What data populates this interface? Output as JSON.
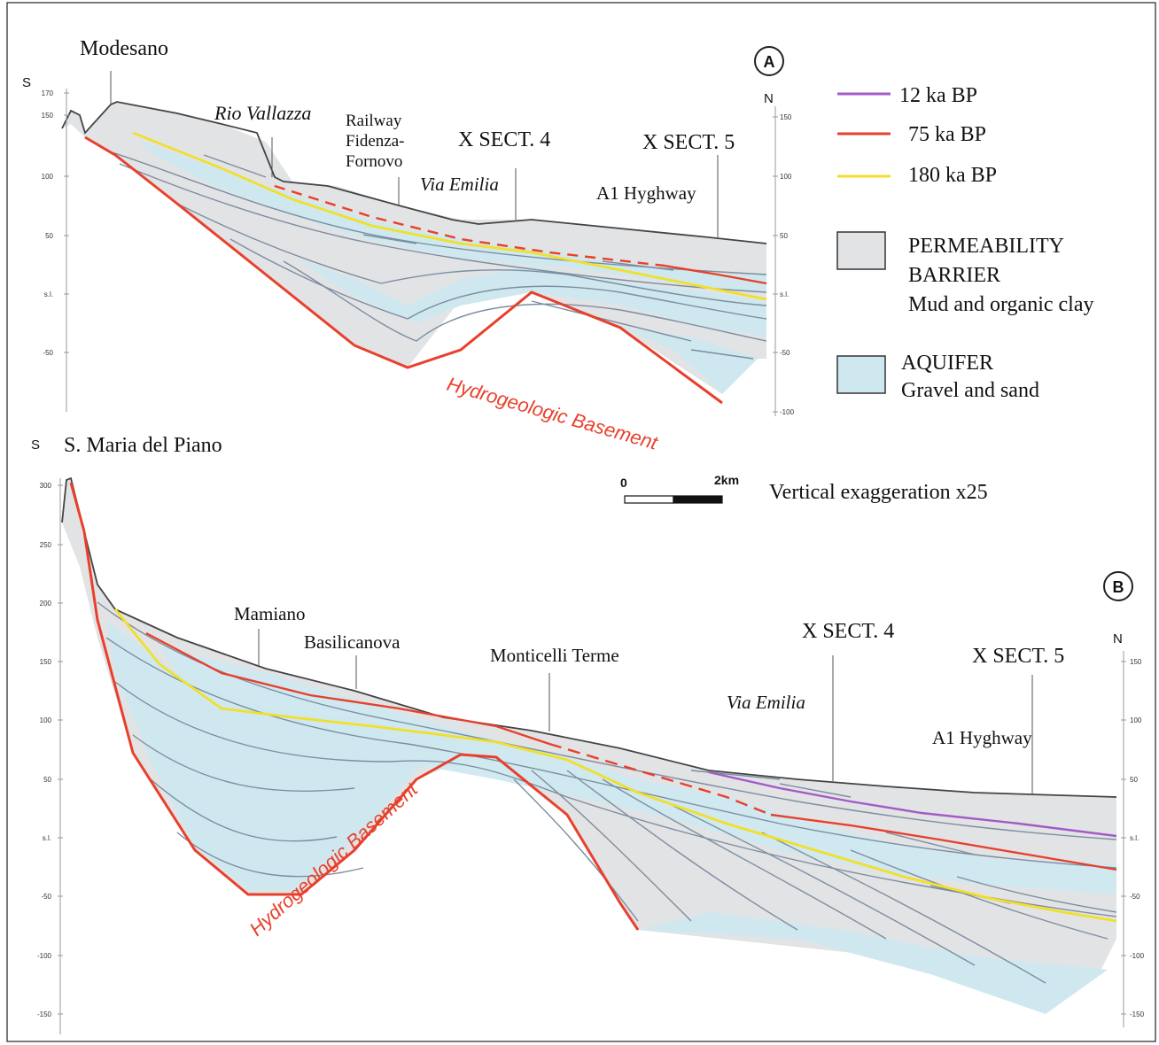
{
  "colors": {
    "barrier": "#e2e3e5",
    "aquifer": "#cfe8ef",
    "basement": "#e8402c",
    "line_12ka": "#a35bc7",
    "line_75ka": "#e8402c",
    "line_180ka": "#f2df2a",
    "bed_lines": "#7c8ea0",
    "profile": "#444444"
  },
  "section_a": {
    "id": "A",
    "south_label": "S",
    "north_label": "N",
    "left_ticks": [
      "170",
      "150",
      "100",
      "50",
      "s.l.",
      "-50"
    ],
    "right_ticks": [
      "150",
      "100",
      "50",
      "s.l.",
      "-50",
      "-100"
    ],
    "places": {
      "modesano": "Modesano",
      "rio_vallazza": "Rio Vallazza",
      "railway_1": "Railway",
      "railway_2": "Fidenza-",
      "railway_3": "Fornovo",
      "xsect4": "X SECT. 4",
      "via_emilia": "Via Emilia",
      "xsect5": "X SECT. 5",
      "a1": "A1 Hyghway"
    },
    "basement_label": "Hydrogeologic Basement"
  },
  "section_b": {
    "id": "B",
    "south_label": "S",
    "north_label": "N",
    "left_ticks": [
      "300",
      "250",
      "200",
      "150",
      "100",
      "50",
      "s.l.",
      "-50",
      "-100",
      "-150"
    ],
    "right_ticks": [
      "150",
      "100",
      "50",
      "s.l.",
      "-50",
      "-100",
      "-150"
    ],
    "places": {
      "santa_maria": "S. Maria del Piano",
      "mamiano": "Mamiano",
      "basilicanova": "Basilicanova",
      "monticelli": "Monticelli Terme",
      "xsect4": "X SECT. 4",
      "via_emilia": "Via Emilia",
      "xsect5": "X SECT. 5",
      "a1": "A1 Hyghway"
    },
    "basement_label": "Hydrogeologic Basement"
  },
  "legend": {
    "line_12ka": "12 ka BP",
    "line_75ka": "75 ka BP",
    "line_180ka": "180 ka BP",
    "barrier_1": "PERMEABILITY",
    "barrier_2": "BARRIER",
    "barrier_3": "Mud and organic clay",
    "aquifer_1": "AQUIFER",
    "aquifer_2": "Gravel and sand"
  },
  "scale_bar": {
    "zero": "0",
    "length": "2km",
    "exaggeration": "Vertical exaggeration x25"
  }
}
